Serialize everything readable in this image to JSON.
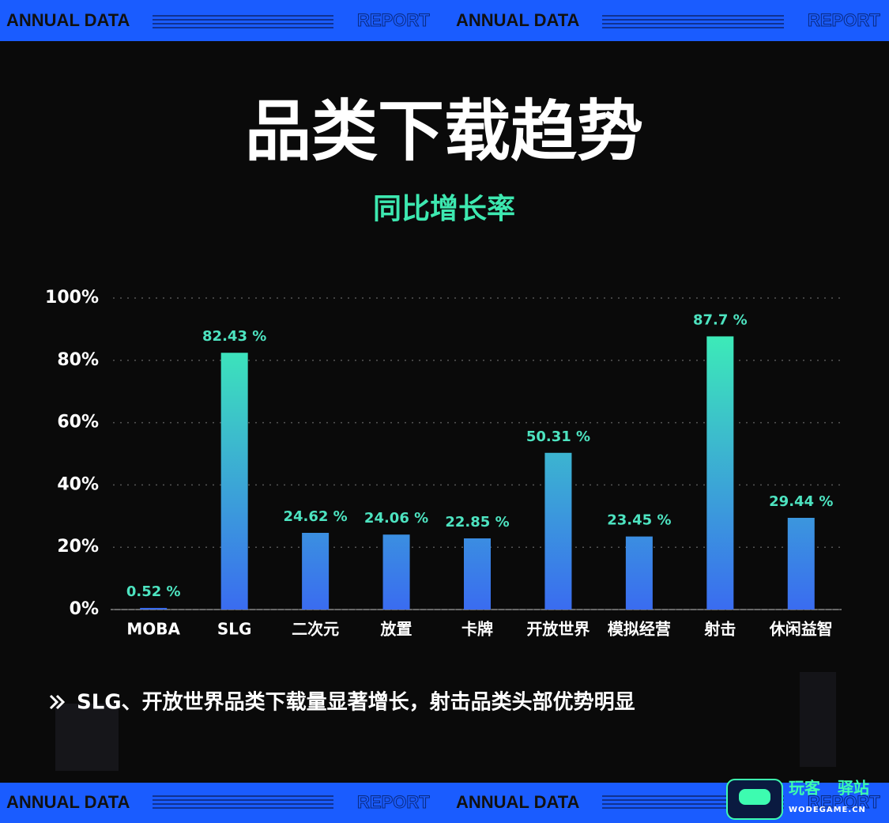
{
  "header": {
    "banner": [
      "ANNUAL DATA",
      "REPORT",
      "ANNUAL DATA",
      "REPORT"
    ]
  },
  "footer": {
    "banner": [
      "ANNUAL DATA",
      "REPORT",
      "ANNUAL DATA",
      "REPORT"
    ],
    "watermark": [
      "玩客",
      "驿站",
      "WODEGAME.CN"
    ]
  },
  "chart_data": {
    "type": "bar",
    "title": "品类下载趋势",
    "subtitle": "同比增长率",
    "categories": [
      "MOBA",
      "SLG",
      "二次元",
      "放置",
      "卡牌",
      "开放世界",
      "模拟经营",
      "射击",
      "休闲益智"
    ],
    "values": [
      0.52,
      82.43,
      24.62,
      24.06,
      22.85,
      50.31,
      23.45,
      87.7,
      29.44
    ],
    "value_labels": [
      "0.52 %",
      "82.43 %",
      "24.62 %",
      "24.06 %",
      "22.85 %",
      "50.31 %",
      "23.45 %",
      "87.7 %",
      "29.44 %"
    ],
    "color": [
      "#3dfcb0",
      "#3a6cf0"
    ],
    "ylim": [
      0,
      100
    ],
    "yticks": [
      {
        "value": 0,
        "label": "0%"
      },
      {
        "value": 20,
        "label": "20%"
      },
      {
        "value": 40,
        "label": "40%"
      },
      {
        "value": 60,
        "label": "60%"
      },
      {
        "value": 80,
        "label": "80%"
      },
      {
        "value": 100,
        "label": "100%"
      }
    ],
    "grid": true,
    "annotation": "SLG、开放世界品类下载量显著增长，射击品类头部优势明显"
  }
}
